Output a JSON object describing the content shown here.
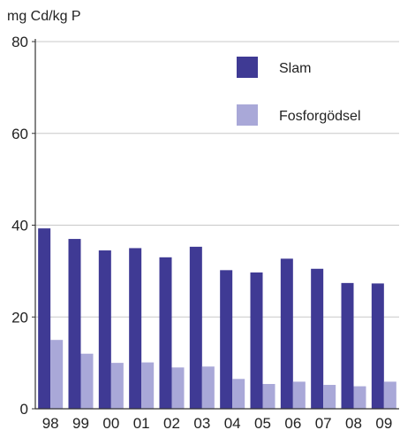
{
  "chart_data": {
    "type": "bar",
    "ylabel": "mg Cd/kg P",
    "ylim": [
      0,
      80
    ],
    "yticks": [
      0,
      20,
      40,
      60,
      80
    ],
    "grid": true,
    "legend_position": "top-right",
    "categories": [
      "98",
      "99",
      "00",
      "01",
      "02",
      "03",
      "04",
      "05",
      "06",
      "07",
      "08",
      "09"
    ],
    "series": [
      {
        "name": "Slam",
        "color": "#3f3a94",
        "values": [
          39.3,
          37.0,
          34.5,
          35.0,
          33.0,
          35.3,
          30.2,
          29.7,
          32.7,
          30.5,
          27.4,
          27.3
        ]
      },
      {
        "name": "Fosforgödsel",
        "color": "#a9a8d8",
        "values": [
          15.0,
          12.0,
          10.0,
          10.1,
          9.0,
          9.2,
          6.5,
          5.4,
          5.9,
          5.2,
          4.9,
          5.9
        ]
      }
    ]
  }
}
